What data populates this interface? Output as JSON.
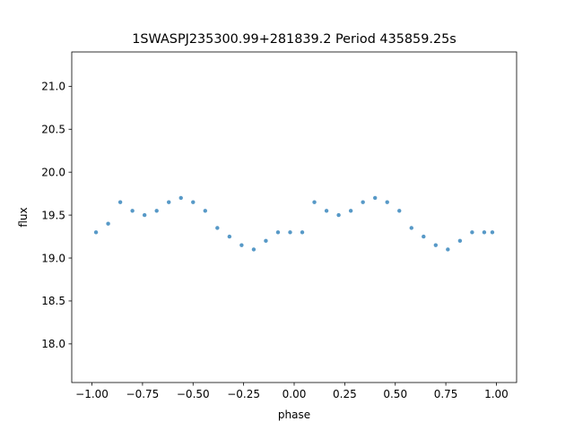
{
  "chart_data": {
    "type": "scatter",
    "title": "1SWASPJ235300.99+281839.2 Period 435859.25s",
    "xlabel": "phase",
    "ylabel": "flux",
    "xlim": [
      -1.1,
      1.1
    ],
    "ylim": [
      17.55,
      21.4
    ],
    "xticks": [
      {
        "value": -1.0,
        "label": "−1.00"
      },
      {
        "value": -0.75,
        "label": "−0.75"
      },
      {
        "value": -0.5,
        "label": "−0.50"
      },
      {
        "value": -0.25,
        "label": "−0.25"
      },
      {
        "value": 0.0,
        "label": "0.00"
      },
      {
        "value": 0.25,
        "label": "0.25"
      },
      {
        "value": 0.5,
        "label": "0.50"
      },
      {
        "value": 0.75,
        "label": "0.75"
      },
      {
        "value": 1.0,
        "label": "1.00"
      }
    ],
    "yticks": [
      {
        "value": 18.0,
        "label": "18.0"
      },
      {
        "value": 18.5,
        "label": "18.5"
      },
      {
        "value": 19.0,
        "label": "19.0"
      },
      {
        "value": 19.5,
        "label": "19.5"
      },
      {
        "value": 20.0,
        "label": "20.0"
      },
      {
        "value": 20.5,
        "label": "20.5"
      },
      {
        "value": 21.0,
        "label": "21.0"
      }
    ],
    "grid": false,
    "marker_color": "#1f77b4",
    "series": [
      {
        "x": [
          -0.98,
          -0.92,
          -0.86,
          -0.8,
          -0.74,
          -0.68,
          -0.62,
          -0.56,
          -0.5,
          -0.44,
          -0.38,
          -0.32,
          -0.26,
          -0.2,
          -0.14,
          -0.08,
          -0.02,
          0.04,
          0.1,
          0.16,
          0.22,
          0.28,
          0.34,
          0.4,
          0.46,
          0.52,
          0.58,
          0.64,
          0.7,
          0.76,
          0.82,
          0.88,
          0.94,
          0.98
        ],
        "y": [
          19.3,
          19.4,
          19.65,
          19.55,
          19.5,
          19.55,
          19.65,
          19.7,
          19.65,
          19.55,
          19.35,
          19.25,
          19.15,
          19.1,
          19.2,
          19.3,
          19.3,
          19.3,
          19.65,
          19.55,
          19.5,
          19.55,
          19.65,
          19.7,
          19.65,
          19.55,
          19.35,
          19.25,
          19.15,
          19.1,
          19.2,
          19.3,
          19.3,
          19.3
        ]
      }
    ]
  }
}
